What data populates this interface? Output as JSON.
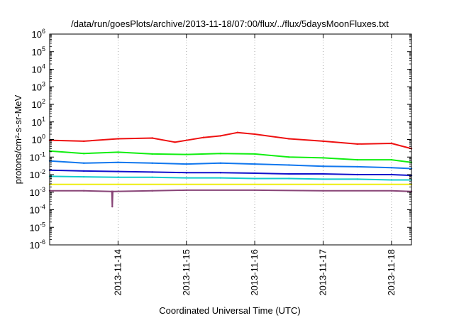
{
  "chart_data": {
    "type": "line",
    "title": "/data/run/goesPlots/archive/2013-11-18/07:00/flux/../flux/5daysMoonFluxes.txt",
    "xlabel": "Coordinated Universal Time (UTC)",
    "ylabel": "protons/cm²-s-sr-MeV",
    "y_scale": "log",
    "ylim": [
      1e-06,
      1000000.0
    ],
    "y_ticks": [
      {
        "value": 1e-06,
        "base": "10",
        "exp": "-6"
      },
      {
        "value": 1e-05,
        "base": "10",
        "exp": "-5"
      },
      {
        "value": 0.0001,
        "base": "10",
        "exp": "-4"
      },
      {
        "value": 0.001,
        "base": "10",
        "exp": "-3"
      },
      {
        "value": 0.01,
        "base": "10",
        "exp": "-2"
      },
      {
        "value": 0.1,
        "base": "10",
        "exp": "-1"
      },
      {
        "value": 1,
        "base": "10",
        "exp": "0"
      },
      {
        "value": 10,
        "base": "10",
        "exp": "1"
      },
      {
        "value": 100,
        "base": "10",
        "exp": "2"
      },
      {
        "value": 1000,
        "base": "10",
        "exp": "3"
      },
      {
        "value": 10000,
        "base": "10",
        "exp": "4"
      },
      {
        "value": 100000,
        "base": "10",
        "exp": "5"
      },
      {
        "value": 1000000,
        "base": "10",
        "exp": "6"
      }
    ],
    "xlim": [
      "2013-11-13 00:00",
      "2013-11-18 07:00"
    ],
    "x_ticks": [
      "2013-11-14",
      "2013-11-15",
      "2013-11-16",
      "2013-11-17",
      "2013-11-18"
    ],
    "grid": {
      "x": true,
      "y": false
    },
    "series": [
      {
        "color": "#ee1111",
        "values": [
          {
            "x": "2013-11-13 00:00",
            "y": 0.9
          },
          {
            "x": "2013-11-13 12:00",
            "y": 0.8
          },
          {
            "x": "2013-11-14 00:00",
            "y": 1.1
          },
          {
            "x": "2013-11-14 12:00",
            "y": 1.2
          },
          {
            "x": "2013-11-14 20:00",
            "y": 0.7
          },
          {
            "x": "2013-11-15 06:00",
            "y": 1.3
          },
          {
            "x": "2013-11-15 12:00",
            "y": 1.6
          },
          {
            "x": "2013-11-15 18:00",
            "y": 2.5
          },
          {
            "x": "2013-11-16 00:00",
            "y": 2.0
          },
          {
            "x": "2013-11-16 12:00",
            "y": 1.1
          },
          {
            "x": "2013-11-17 00:00",
            "y": 0.8
          },
          {
            "x": "2013-11-17 12:00",
            "y": 0.55
          },
          {
            "x": "2013-11-18 00:00",
            "y": 0.6
          },
          {
            "x": "2013-11-18 07:00",
            "y": 0.3
          }
        ]
      },
      {
        "color": "#11ee11",
        "values": [
          {
            "x": "2013-11-13 00:00",
            "y": 0.22
          },
          {
            "x": "2013-11-13 12:00",
            "y": 0.16
          },
          {
            "x": "2013-11-14 00:00",
            "y": 0.19
          },
          {
            "x": "2013-11-14 12:00",
            "y": 0.15
          },
          {
            "x": "2013-11-15 00:00",
            "y": 0.14
          },
          {
            "x": "2013-11-15 12:00",
            "y": 0.16
          },
          {
            "x": "2013-11-16 00:00",
            "y": 0.15
          },
          {
            "x": "2013-11-16 12:00",
            "y": 0.1
          },
          {
            "x": "2013-11-17 00:00",
            "y": 0.09
          },
          {
            "x": "2013-11-17 12:00",
            "y": 0.07
          },
          {
            "x": "2013-11-18 00:00",
            "y": 0.07
          },
          {
            "x": "2013-11-18 07:00",
            "y": 0.05
          }
        ]
      },
      {
        "color": "#1177ee",
        "values": [
          {
            "x": "2013-11-13 00:00",
            "y": 0.06
          },
          {
            "x": "2013-11-13 12:00",
            "y": 0.045
          },
          {
            "x": "2013-11-14 00:00",
            "y": 0.05
          },
          {
            "x": "2013-11-14 12:00",
            "y": 0.045
          },
          {
            "x": "2013-11-15 00:00",
            "y": 0.04
          },
          {
            "x": "2013-11-15 12:00",
            "y": 0.045
          },
          {
            "x": "2013-11-16 00:00",
            "y": 0.04
          },
          {
            "x": "2013-11-16 12:00",
            "y": 0.035
          },
          {
            "x": "2013-11-17 00:00",
            "y": 0.03
          },
          {
            "x": "2013-11-17 12:00",
            "y": 0.028
          },
          {
            "x": "2013-11-18 00:00",
            "y": 0.025
          },
          {
            "x": "2013-11-18 07:00",
            "y": 0.022
          }
        ]
      },
      {
        "color": "#1111cc",
        "values": [
          {
            "x": "2013-11-13 00:00",
            "y": 0.018
          },
          {
            "x": "2013-11-13 12:00",
            "y": 0.016
          },
          {
            "x": "2013-11-14 00:00",
            "y": 0.015
          },
          {
            "x": "2013-11-14 12:00",
            "y": 0.014
          },
          {
            "x": "2013-11-15 00:00",
            "y": 0.013
          },
          {
            "x": "2013-11-15 12:00",
            "y": 0.013
          },
          {
            "x": "2013-11-16 00:00",
            "y": 0.012
          },
          {
            "x": "2013-11-16 12:00",
            "y": 0.011
          },
          {
            "x": "2013-11-17 00:00",
            "y": 0.011
          },
          {
            "x": "2013-11-17 12:00",
            "y": 0.01
          },
          {
            "x": "2013-11-18 00:00",
            "y": 0.01
          },
          {
            "x": "2013-11-18 07:00",
            "y": 0.009
          }
        ]
      },
      {
        "color": "#11cccc",
        "values": [
          {
            "x": "2013-11-13 00:00",
            "y": 0.008
          },
          {
            "x": "2013-11-13 12:00",
            "y": 0.0075
          },
          {
            "x": "2013-11-14 00:00",
            "y": 0.007
          },
          {
            "x": "2013-11-14 12:00",
            "y": 0.007
          },
          {
            "x": "2013-11-15 00:00",
            "y": 0.0065
          },
          {
            "x": "2013-11-15 12:00",
            "y": 0.0065
          },
          {
            "x": "2013-11-16 00:00",
            "y": 0.006
          },
          {
            "x": "2013-11-16 12:00",
            "y": 0.006
          },
          {
            "x": "2013-11-17 00:00",
            "y": 0.0055
          },
          {
            "x": "2013-11-17 12:00",
            "y": 0.0055
          },
          {
            "x": "2013-11-18 00:00",
            "y": 0.005
          },
          {
            "x": "2013-11-18 07:00",
            "y": 0.005
          }
        ]
      },
      {
        "color": "#eeee11",
        "values": [
          {
            "x": "2013-11-13 00:00",
            "y": 0.0028
          },
          {
            "x": "2013-11-14 00:00",
            "y": 0.0028
          },
          {
            "x": "2013-11-15 00:00",
            "y": 0.0028
          },
          {
            "x": "2013-11-16 00:00",
            "y": 0.0028
          },
          {
            "x": "2013-11-17 00:00",
            "y": 0.0028
          },
          {
            "x": "2013-11-18 00:00",
            "y": 0.0028
          },
          {
            "x": "2013-11-18 07:00",
            "y": 0.0028
          }
        ]
      },
      {
        "color": "#884477",
        "values": [
          {
            "x": "2013-11-13 00:00",
            "y": 0.0012
          },
          {
            "x": "2013-11-13 12:00",
            "y": 0.0012
          },
          {
            "x": "2013-11-13 21:50",
            "y": 0.0011
          },
          {
            "x": "2013-11-13 22:00",
            "y": 0.00015
          },
          {
            "x": "2013-11-13 22:10",
            "y": 0.0011
          },
          {
            "x": "2013-11-14 12:00",
            "y": 0.0012
          },
          {
            "x": "2013-11-15 00:00",
            "y": 0.0013
          },
          {
            "x": "2013-11-16 00:00",
            "y": 0.0013
          },
          {
            "x": "2013-11-17 00:00",
            "y": 0.0012
          },
          {
            "x": "2013-11-18 00:00",
            "y": 0.0012
          },
          {
            "x": "2013-11-18 07:00",
            "y": 0.0011
          }
        ]
      }
    ]
  }
}
